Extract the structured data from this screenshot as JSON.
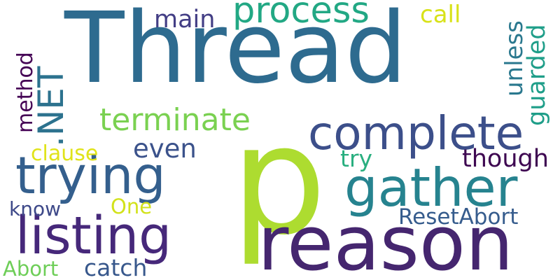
{
  "words": [
    {
      "id": "thread",
      "text": "Thread",
      "color": "#2e6b8f",
      "vertical": false
    },
    {
      "id": "p",
      "text": "p",
      "color": "#addc30",
      "vertical": false
    },
    {
      "id": "reason",
      "text": "reason",
      "color": "#45266f",
      "vertical": false
    },
    {
      "id": "complete",
      "text": "complete",
      "color": "#3c4f8a",
      "vertical": false
    },
    {
      "id": "gather",
      "text": "gather",
      "color": "#26838f",
      "vertical": false
    },
    {
      "id": "trying",
      "text": "trying",
      "color": "#345f8d",
      "vertical": false
    },
    {
      "id": "listing",
      "text": "listing",
      "color": "#46287a",
      "vertical": false
    },
    {
      "id": "process",
      "text": "process",
      "color": "#22a884",
      "vertical": false
    },
    {
      "id": "net",
      "text": ".NET",
      "color": "#2c728e",
      "vertical": true
    },
    {
      "id": "terminate",
      "text": "terminate",
      "color": "#7ad151",
      "vertical": false
    },
    {
      "id": "even",
      "text": "even",
      "color": "#3b528b",
      "vertical": false
    },
    {
      "id": "guarded",
      "text": "guarded",
      "color": "#1f9e89",
      "vertical": true
    },
    {
      "id": "unless",
      "text": "unless",
      "color": "#2a788e",
      "vertical": true
    },
    {
      "id": "method",
      "text": "method",
      "color": "#440154",
      "vertical": true
    },
    {
      "id": "main",
      "text": "main",
      "color": "#433e85",
      "vertical": false
    },
    {
      "id": "call",
      "text": "call",
      "color": "#d8e219",
      "vertical": false
    },
    {
      "id": "though",
      "text": "though",
      "color": "#3e0751",
      "vertical": false
    },
    {
      "id": "try",
      "text": "try",
      "color": "#29af7f",
      "vertical": false
    },
    {
      "id": "clause",
      "text": "clause",
      "color": "#e0e31a",
      "vertical": false
    },
    {
      "id": "resetabort",
      "text": "ResetAbort",
      "color": "#365c8d",
      "vertical": false
    },
    {
      "id": "know",
      "text": "know",
      "color": "#3e4989",
      "vertical": false
    },
    {
      "id": "one",
      "text": "One",
      "color": "#d2e21b",
      "vertical": false
    },
    {
      "id": "abort",
      "text": "Abort",
      "color": "#6ece58",
      "vertical": false
    },
    {
      "id": "catch",
      "text": "catch",
      "color": "#38588c",
      "vertical": false
    }
  ]
}
